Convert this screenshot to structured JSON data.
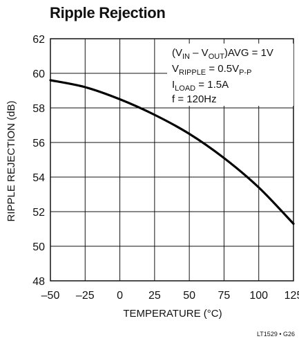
{
  "chart_data": {
    "type": "line",
    "title": "Ripple Rejection",
    "xlabel": "TEMPERATURE (°C)",
    "ylabel": "RIPPLE REJECTION (dB)",
    "xlim": [
      -50,
      125
    ],
    "ylim": [
      48,
      62
    ],
    "x_ticks": [
      -50,
      -25,
      0,
      25,
      50,
      75,
      100,
      125
    ],
    "x_tick_labels": [
      "–50",
      "–25",
      "0",
      "25",
      "50",
      "75",
      "100",
      "125"
    ],
    "y_ticks": [
      48,
      50,
      52,
      54,
      56,
      58,
      60,
      62
    ],
    "y_tick_labels": [
      "48",
      "50",
      "52",
      "54",
      "56",
      "58",
      "60",
      "62"
    ],
    "grid": true,
    "series": [
      {
        "x": [
          -50,
          -25,
          0,
          25,
          50,
          75,
          100,
          125
        ],
        "y": [
          59.6,
          59.2,
          58.5,
          57.6,
          56.5,
          55.1,
          53.4,
          51.3
        ]
      }
    ],
    "annotations": [
      "(V_IN – V_OUT)AVG = 1V",
      "V_RIPPLE = 0.5V_P-P",
      "I_LOAD = 1.5A",
      "f = 120Hz"
    ],
    "figure_id": "LT1529 • G26"
  }
}
